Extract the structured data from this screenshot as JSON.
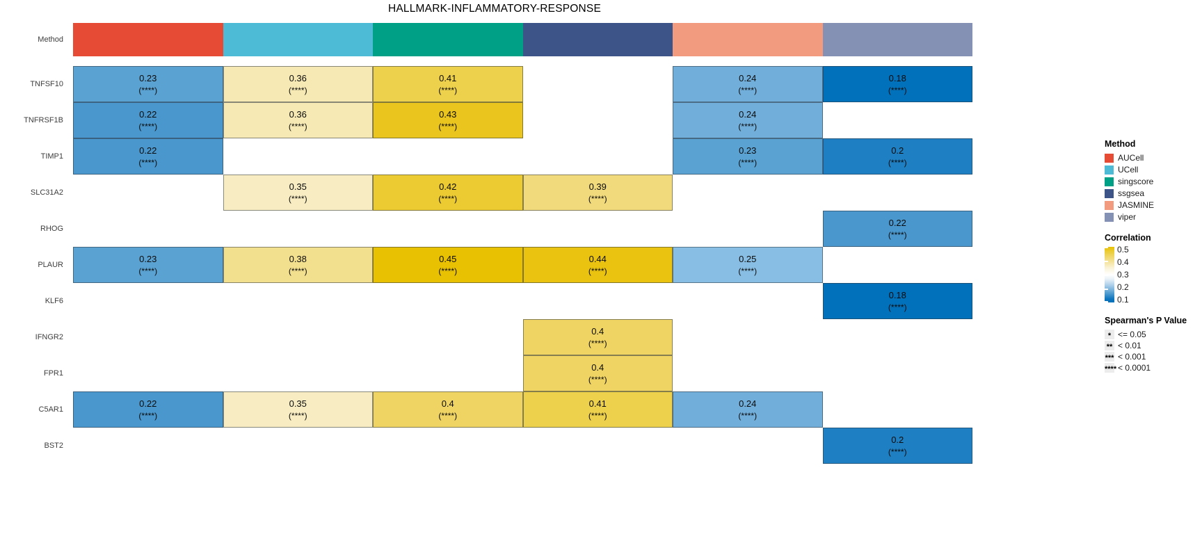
{
  "title": "HALLMARK-INFLAMMATORY-RESPONSE",
  "chart_data": {
    "type": "heatmap",
    "title": "HALLMARK-INFLAMMATORY-RESPONSE",
    "row_header_label": "Method",
    "columns": [
      "AUCell",
      "UCell",
      "singscore",
      "ssgsea",
      "JASMINE",
      "viper"
    ],
    "method_colors": {
      "AUCell": "#E64B35",
      "UCell": "#4DBBD5",
      "singscore": "#00A087",
      "ssgsea": "#3C5488",
      "JASMINE": "#F39B7F",
      "viper": "#8491B4"
    },
    "significance_note": "all shown cells are (****)",
    "rows": [
      {
        "gene": "TNFSF10",
        "values": [
          "0.23",
          "0.36",
          "0.41",
          null,
          "0.24",
          "0.18"
        ],
        "sig": [
          "(****)",
          "(****)",
          "(****)",
          null,
          "(****)",
          "(****)"
        ]
      },
      {
        "gene": "TNFRSF1B",
        "values": [
          "0.22",
          "0.36",
          "0.43",
          null,
          "0.24",
          null
        ],
        "sig": [
          "(****)",
          "(****)",
          "(****)",
          null,
          "(****)",
          null
        ]
      },
      {
        "gene": "TIMP1",
        "values": [
          "0.22",
          null,
          null,
          null,
          "0.23",
          "0.2"
        ],
        "sig": [
          "(****)",
          null,
          null,
          null,
          "(****)",
          "(****)"
        ]
      },
      {
        "gene": "SLC31A2",
        "values": [
          null,
          "0.35",
          "0.42",
          "0.39",
          null,
          null
        ],
        "sig": [
          null,
          "(****)",
          "(****)",
          "(****)",
          null,
          null
        ]
      },
      {
        "gene": "RHOG",
        "values": [
          null,
          null,
          null,
          null,
          null,
          "0.22"
        ],
        "sig": [
          null,
          null,
          null,
          null,
          null,
          "(****)"
        ]
      },
      {
        "gene": "PLAUR",
        "values": [
          "0.23",
          "0.38",
          "0.45",
          "0.44",
          "0.25",
          null
        ],
        "sig": [
          "(****)",
          "(****)",
          "(****)",
          "(****)",
          "(****)",
          null
        ]
      },
      {
        "gene": "KLF6",
        "values": [
          null,
          null,
          null,
          null,
          null,
          "0.18"
        ],
        "sig": [
          null,
          null,
          null,
          null,
          null,
          "(****)"
        ]
      },
      {
        "gene": "IFNGR2",
        "values": [
          null,
          null,
          null,
          "0.4",
          null,
          null
        ],
        "sig": [
          null,
          null,
          null,
          "(****)",
          null,
          null
        ]
      },
      {
        "gene": "FPR1",
        "values": [
          null,
          null,
          null,
          "0.4",
          null,
          null
        ],
        "sig": [
          null,
          null,
          null,
          "(****)",
          null,
          null
        ]
      },
      {
        "gene": "C5AR1",
        "values": [
          "0.22",
          "0.35",
          "0.4",
          "0.41",
          "0.24",
          null
        ],
        "sig": [
          "(****)",
          "(****)",
          "(****)",
          "(****)",
          "(****)",
          null
        ]
      },
      {
        "gene": "BST2",
        "values": [
          null,
          null,
          null,
          null,
          null,
          "0.2"
        ],
        "sig": [
          null,
          null,
          null,
          null,
          null,
          "(****)"
        ]
      }
    ],
    "value_colors": {
      "0.18": "#0271bb",
      "0.2": "#1e7fc3",
      "0.22": "#4997cd",
      "0.23": "#5aa2d2",
      "0.24": "#71aeda",
      "0.25": "#88bee3",
      "0.35": "#f8edc2",
      "0.36": "#f6e9b3",
      "0.38": "#f3e08f",
      "0.39": "#f1da7c",
      "0.4": "#efd463",
      "0.41": "#edd04b",
      "0.42": "#ebca32",
      "0.43": "#e9c51d",
      "0.44": "#e9c30f",
      "0.45": "#e8c103"
    }
  },
  "legend": {
    "method": {
      "title": "Method",
      "items": [
        {
          "label": "AUCell",
          "color": "#E64B35"
        },
        {
          "label": "UCell",
          "color": "#4DBBD5"
        },
        {
          "label": "singscore",
          "color": "#00A087"
        },
        {
          "label": "ssgsea",
          "color": "#3C5488"
        },
        {
          "label": "JASMINE",
          "color": "#F39B7F"
        },
        {
          "label": "viper",
          "color": "#8491B4"
        }
      ]
    },
    "correlation": {
      "title": "Correlation",
      "ticks": [
        "0.5",
        "0.4",
        "0.3",
        "0.2",
        "0.1"
      ],
      "range": [
        0.1,
        0.5
      ],
      "gradient_stops": [
        "#e8c103 0%",
        "#edd04b 12%",
        "#f3e091 25%",
        "#faf3d8 38%",
        "#ffffff 50%",
        "#e9f1f8 58%",
        "#a6cbe8 70%",
        "#5aa2d2 82%",
        "#0d74bd 94%",
        "#0571b8 100%"
      ]
    },
    "pvalue": {
      "title": "Spearman's P Value",
      "items": [
        {
          "stars": "*",
          "label": "<= 0.05"
        },
        {
          "stars": "**",
          "label": "< 0.01"
        },
        {
          "stars": "***",
          "label": "< 0.001"
        },
        {
          "stars": "****",
          "label": "< 0.0001"
        }
      ]
    }
  }
}
